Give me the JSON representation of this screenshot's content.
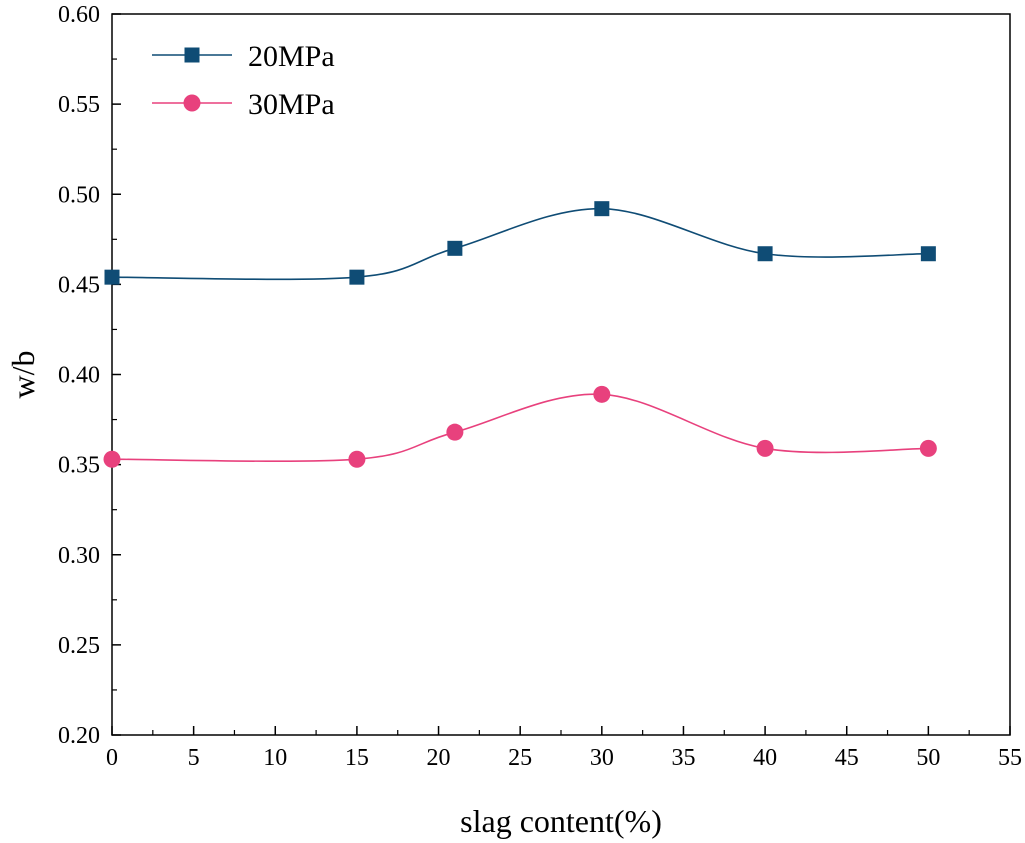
{
  "chart_data": {
    "type": "line",
    "xlabel": "slag content(%)",
    "ylabel": "w/b",
    "xlim": [
      0,
      55
    ],
    "ylim": [
      0.2,
      0.6
    ],
    "x_ticks": [
      0,
      5,
      10,
      15,
      20,
      25,
      30,
      35,
      40,
      45,
      50,
      55
    ],
    "y_ticks": [
      0.2,
      0.25,
      0.3,
      0.35,
      0.4,
      0.45,
      0.5,
      0.55,
      0.6
    ],
    "x_tick_labels": [
      "0",
      "5",
      "10",
      "15",
      "20",
      "25",
      "30",
      "35",
      "40",
      "45",
      "50",
      "55"
    ],
    "y_tick_labels": [
      "0.20",
      "0.25",
      "0.30",
      "0.35",
      "0.40",
      "0.45",
      "0.50",
      "0.55",
      "0.60"
    ],
    "grid": false,
    "legend_position": "top-left",
    "series": [
      {
        "name": "20MPa",
        "marker": "square",
        "color": "#0f4c75",
        "x": [
          0,
          15,
          21,
          30,
          40,
          50
        ],
        "y": [
          0.454,
          0.454,
          0.47,
          0.492,
          0.467,
          0.467
        ]
      },
      {
        "name": "30MPa",
        "marker": "circle",
        "color": "#e8417d",
        "x": [
          0,
          15,
          21,
          30,
          40,
          50
        ],
        "y": [
          0.353,
          0.353,
          0.368,
          0.389,
          0.359,
          0.359
        ]
      }
    ]
  }
}
